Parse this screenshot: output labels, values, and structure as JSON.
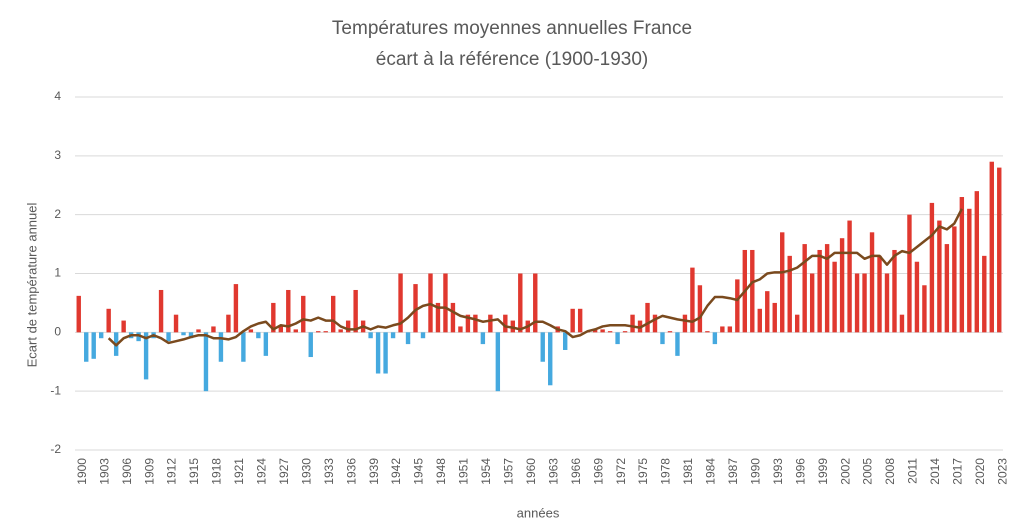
{
  "chart_data": {
    "type": "bar",
    "title": [
      "Températures moyennes annuelles France",
      "écart à la référence (1900-1930)"
    ],
    "y_label": "Ecart de température annuel",
    "x_label": "années",
    "categories": [
      "1900",
      null,
      null,
      "1903",
      null,
      null,
      "1906",
      null,
      null,
      "1909",
      null,
      null,
      "1912",
      null,
      null,
      "1915",
      null,
      null,
      "1918",
      null,
      null,
      "1921",
      null,
      null,
      "1924",
      null,
      null,
      "1927",
      null,
      null,
      "1930",
      null,
      null,
      "1933",
      null,
      null,
      "1936",
      null,
      null,
      "1939",
      null,
      null,
      "1942",
      null,
      null,
      "1945",
      null,
      null,
      "1948",
      null,
      null,
      "1951",
      null,
      null,
      "1954",
      null,
      null,
      "1957",
      null,
      null,
      "1960",
      null,
      null,
      "1963",
      null,
      null,
      "1966",
      null,
      null,
      "1969",
      null,
      null,
      "1972",
      null,
      null,
      "1975",
      null,
      null,
      "1978",
      null,
      null,
      "1981",
      null,
      null,
      "1984",
      null,
      null,
      "1987",
      null,
      null,
      "1990",
      null,
      null,
      "1993",
      null,
      null,
      "1996",
      null,
      null,
      "1999",
      null,
      null,
      "2002",
      null,
      null,
      "2005",
      null,
      null,
      "2008",
      null,
      null,
      "2011",
      null,
      null,
      "2014",
      null,
      null,
      "2017",
      null,
      null,
      "2020",
      null,
      null,
      "2023"
    ],
    "series": [
      {
        "type": "bar",
        "color_positive": "#e0382f",
        "color_negative": "#45a9df",
        "values": [
          0.62,
          -0.5,
          -0.45,
          -0.1,
          0.4,
          -0.4,
          0.2,
          -0.1,
          -0.15,
          -0.8,
          -0.1,
          0.72,
          -0.15,
          0.3,
          -0.05,
          -0.1,
          0.05,
          -1.0,
          0.1,
          -0.5,
          0.3,
          0.82,
          -0.5,
          0.05,
          -0.1,
          -0.4,
          0.5,
          0.1,
          0.72,
          0.05,
          0.62,
          -0.42,
          0.02,
          0.02,
          0.62,
          0.05,
          0.2,
          0.72,
          0.2,
          -0.1,
          -0.7,
          -0.7,
          -0.1,
          1.0,
          -0.2,
          0.82,
          -0.1,
          1.0,
          0.5,
          1.0,
          0.5,
          0.1,
          0.3,
          0.3,
          -0.2,
          0.3,
          -1.0,
          0.3,
          0.2,
          1.0,
          0.2,
          1.0,
          -0.5,
          -0.9,
          0.1,
          -0.3,
          0.4,
          0.4,
          0.02,
          0.05,
          0.05,
          0.02,
          -0.2,
          0.02,
          0.3,
          0.2,
          0.5,
          0.3,
          -0.2,
          0.02,
          -0.4,
          0.3,
          1.1,
          0.8,
          0.02,
          -0.2,
          0.1,
          0.1,
          0.9,
          1.4,
          1.4,
          0.4,
          0.7,
          0.5,
          1.7,
          1.3,
          0.3,
          1.5,
          1.0,
          1.4,
          1.5,
          1.2,
          1.6,
          1.9,
          1.0,
          1.0,
          1.7,
          1.3,
          1.0,
          1.4,
          0.3,
          2.0,
          1.2,
          0.8,
          2.2,
          1.9,
          1.5,
          1.8,
          2.3,
          2.1,
          2.4,
          1.3,
          2.9,
          2.8
        ]
      },
      {
        "type": "line",
        "color": "#7a4a1e",
        "values": [
          null,
          null,
          null,
          null,
          -0.1,
          -0.22,
          -0.1,
          -0.05,
          -0.05,
          -0.1,
          -0.05,
          -0.1,
          -0.18,
          -0.15,
          -0.12,
          -0.08,
          -0.05,
          -0.05,
          -0.1,
          -0.1,
          -0.12,
          -0.08,
          0.02,
          0.1,
          0.15,
          0.18,
          0.05,
          0.12,
          0.1,
          0.15,
          0.22,
          0.2,
          0.25,
          0.2,
          0.2,
          0.1,
          0.05,
          0.05,
          0.1,
          0.05,
          0.1,
          0.08,
          0.12,
          0.15,
          0.25,
          0.38,
          0.45,
          0.48,
          0.42,
          0.42,
          0.35,
          0.28,
          0.25,
          0.22,
          0.18,
          0.2,
          0.22,
          0.1,
          0.08,
          0.05,
          0.1,
          0.18,
          0.18,
          0.12,
          0.05,
          0.02,
          -0.08,
          -0.05,
          0.02,
          0.05,
          0.1,
          0.12,
          0.12,
          0.12,
          0.1,
          0.08,
          0.15,
          0.22,
          0.28,
          0.25,
          0.22,
          0.2,
          0.18,
          0.25,
          0.45,
          0.6,
          0.6,
          0.58,
          0.55,
          0.7,
          0.85,
          0.9,
          1.0,
          1.02,
          1.02,
          1.05,
          1.1,
          1.2,
          1.3,
          1.3,
          1.25,
          1.35,
          1.35,
          1.35,
          1.35,
          1.25,
          1.3,
          1.3,
          1.15,
          1.3,
          1.38,
          1.35,
          1.45,
          1.55,
          1.65,
          1.8,
          1.75,
          1.85,
          2.1,
          null,
          null,
          null,
          null,
          null
        ]
      }
    ],
    "ylim": [
      -2,
      4
    ],
    "yticks": [
      -2,
      -1,
      0,
      1,
      2,
      3,
      4
    ],
    "grid": true
  }
}
